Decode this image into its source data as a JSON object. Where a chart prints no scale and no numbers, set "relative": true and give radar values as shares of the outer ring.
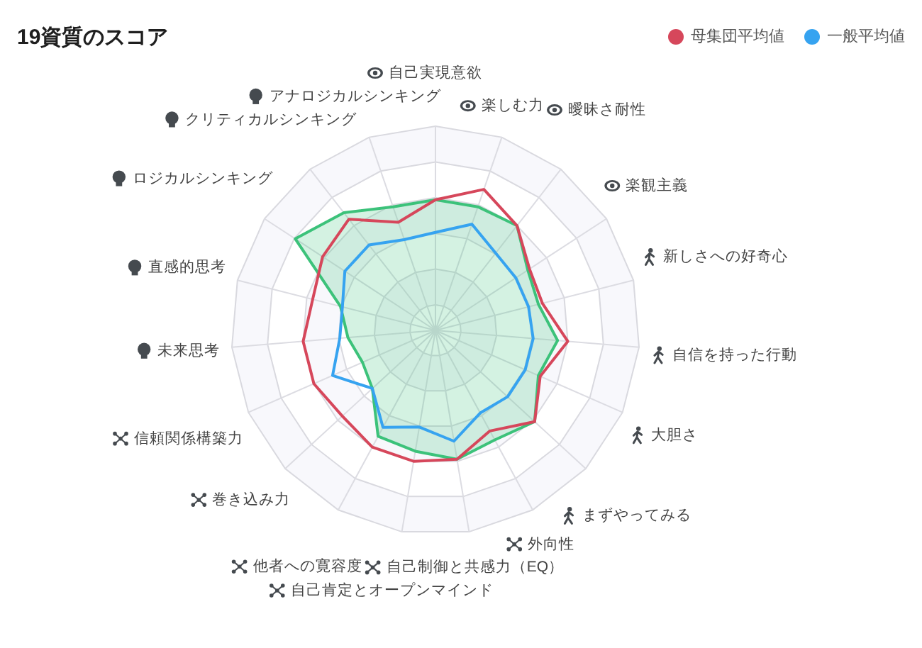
{
  "chart_data": {
    "type": "radar",
    "title": "19資質のスコア",
    "relative": true,
    "grid": true,
    "legend": "top right",
    "categories": [
      "自己実現意欲",
      "楽しむ力",
      "曖昧さ耐性",
      "楽観主義",
      "新しさへの好奇心",
      "自信を持った行動",
      "大胆さ",
      "まずやってみる",
      "外向性",
      "自己制御と共感力（EQ）",
      "自己肯定とオープンマインド",
      "他者への寛容度",
      "巻き込み力",
      "信頼関係構築力",
      "未来思考",
      "直感的思考",
      "ロジカルシンキング",
      "クリティカルシンキング",
      "アナロジカルシンキング"
    ],
    "series": [
      {
        "type": "area",
        "color": "#3cc27a",
        "values": [
          0.64,
          0.64,
          0.65,
          0.54,
          0.52,
          0.6,
          0.55,
          0.66,
          0.61,
          0.64,
          0.6,
          0.59,
          0.42,
          0.39,
          0.43,
          0.48,
          0.82,
          0.73,
          0.64
        ]
      },
      {
        "name": "母集団平均値",
        "color": "#d6475b",
        "values": [
          0.64,
          0.73,
          0.65,
          0.55,
          0.54,
          0.65,
          0.56,
          0.66,
          0.56,
          0.64,
          0.65,
          0.65,
          0.62,
          0.65,
          0.65,
          0.62,
          0.66,
          0.69,
          0.56
        ]
      },
      {
        "name": "一般平均値",
        "color": "#36a3f0",
        "values": [
          0.48,
          0.55,
          0.48,
          0.47,
          0.47,
          0.48,
          0.48,
          0.48,
          0.46,
          0.55,
          0.48,
          0.54,
          0.42,
          0.55,
          0.47,
          0.47,
          0.53,
          0.53,
          0.47
        ]
      }
    ]
  }
}
